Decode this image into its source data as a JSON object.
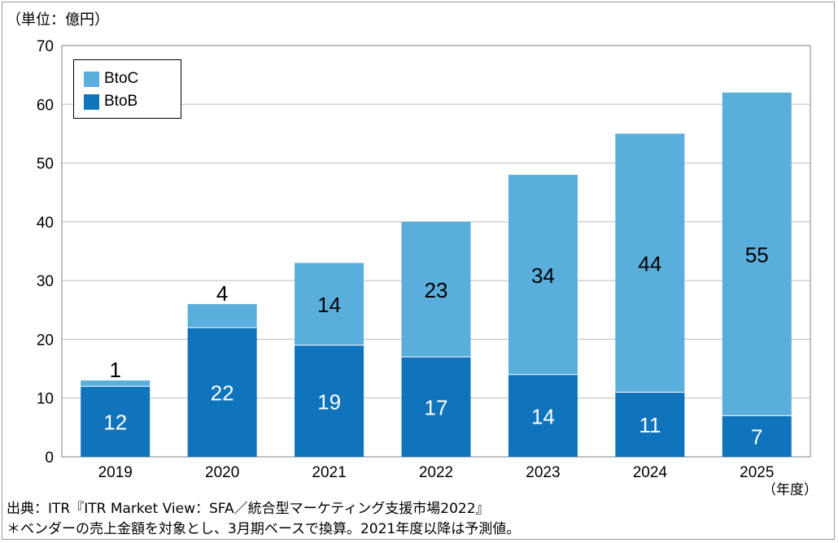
{
  "header": {
    "unit_label": "（単位：億円）"
  },
  "footer": {
    "x_unit": "（年度）",
    "source": "出典：ITR『ITR Market View：SFA／統合型マーケティング支援市場2022』",
    "note": "＊ベンダーの売上金額を対象とし、3月期ベースで換算。2021年度以降は予測値。"
  },
  "colors": {
    "btoc": "#5aaedc",
    "btob": "#0f74bb",
    "grid": "#bdbdbd",
    "axis": "#808080"
  },
  "legend": {
    "items": [
      {
        "label": "BtoC",
        "color": "#5aaedc"
      },
      {
        "label": "BtoB",
        "color": "#0f74bb"
      }
    ]
  },
  "chart_data": {
    "type": "bar",
    "stacked": true,
    "categories": [
      "2019",
      "2020",
      "2021",
      "2022",
      "2023",
      "2024",
      "2025"
    ],
    "series": [
      {
        "name": "BtoB",
        "values": [
          12,
          22,
          19,
          17,
          14,
          11,
          7
        ]
      },
      {
        "name": "BtoC",
        "values": [
          1,
          4,
          14,
          23,
          34,
          44,
          55
        ]
      }
    ],
    "title": "",
    "xlabel": "（年度）",
    "ylabel": "（単位：億円）",
    "ylim": [
      0,
      70
    ],
    "yticks": [
      0,
      10,
      20,
      30,
      40,
      50,
      60,
      70
    ],
    "grid": true,
    "legend_position": "top-left"
  }
}
